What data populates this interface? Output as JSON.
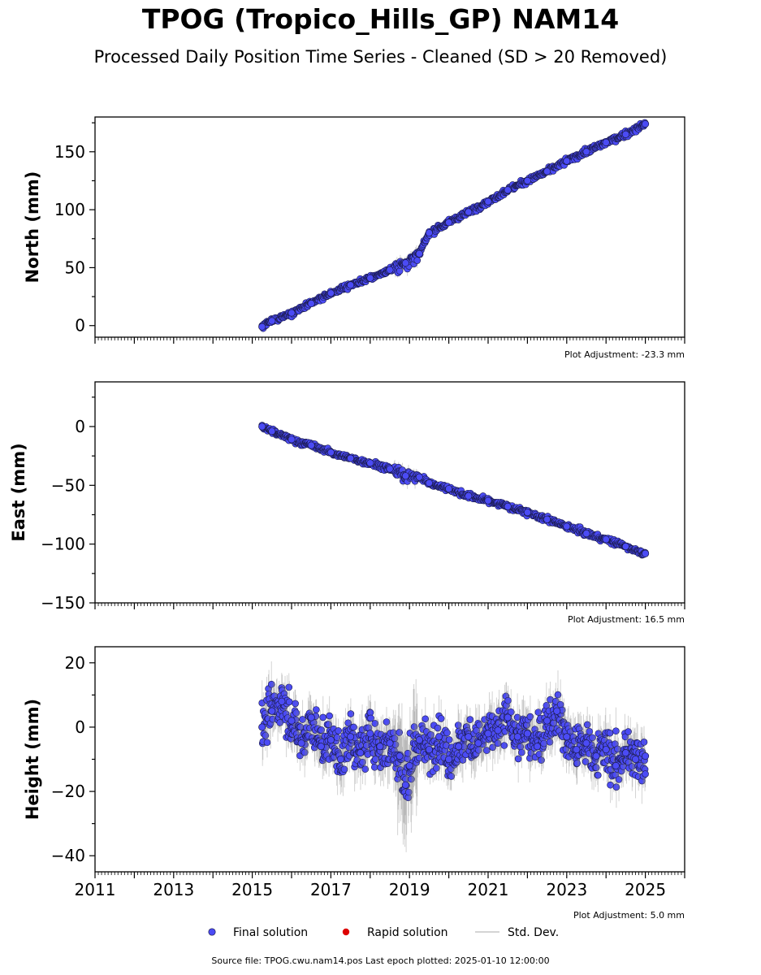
{
  "title": "TPOG (Tropico_Hills_GP) NAM14",
  "subtitle": "Processed Daily Position Time Series - Cleaned (SD > 20 Removed)",
  "footer": "Source file: TPOG.cwu.nam14.pos  Last epoch plotted: 2025-01-10 12:00:00",
  "legend": {
    "final": "Final solution",
    "rapid": "Rapid solution",
    "std": "Std. Dev."
  },
  "colors": {
    "final_fill": "#4b4bf5",
    "final_edge": "#1a1a4a",
    "rapid": "#dd0000",
    "std_dev": "#808080",
    "axis": "#000000"
  },
  "chart_data": [
    {
      "type": "scatter",
      "ylabel": "North (mm)",
      "adjustment": "Plot Adjustment: -23.3 mm",
      "xlim": [
        2011,
        2026
      ],
      "ylim": [
        -10,
        180
      ],
      "yticks": [
        0,
        50,
        100,
        150
      ],
      "grid": false,
      "series": [
        {
          "name": "Final solution",
          "x": [
            2015.25,
            2015.5,
            2016.0,
            2016.5,
            2017.0,
            2017.5,
            2018.0,
            2018.5,
            2018.9,
            2019.25,
            2019.5,
            2020.0,
            2020.5,
            2021.0,
            2021.5,
            2022.0,
            2022.5,
            2023.0,
            2023.5,
            2024.0,
            2024.5,
            2025.0
          ],
          "y": [
            -1,
            4,
            11,
            19,
            28,
            35,
            41,
            48,
            54,
            62,
            80,
            89,
            98,
            107,
            117,
            125,
            133,
            142,
            150,
            158,
            165,
            174
          ]
        }
      ]
    },
    {
      "type": "scatter",
      "ylabel": "East (mm)",
      "adjustment": "Plot Adjustment: 16.5 mm",
      "xlim": [
        2011,
        2026
      ],
      "ylim": [
        -150,
        38
      ],
      "yticks": [
        -150,
        -100,
        -50,
        0
      ],
      "grid": false,
      "series": [
        {
          "name": "Final solution",
          "x": [
            2015.25,
            2015.5,
            2016.0,
            2016.5,
            2017.0,
            2017.5,
            2018.0,
            2018.5,
            2018.9,
            2019.25,
            2019.5,
            2020.0,
            2020.5,
            2021.0,
            2021.5,
            2022.0,
            2022.5,
            2023.0,
            2023.5,
            2024.0,
            2024.5,
            2025.0
          ],
          "y": [
            0,
            -4,
            -11,
            -16,
            -22,
            -27,
            -31,
            -36,
            -42,
            -43,
            -48,
            -53,
            -59,
            -63,
            -68,
            -73,
            -79,
            -85,
            -91,
            -96,
            -102,
            -108
          ]
        }
      ]
    },
    {
      "type": "scatter",
      "ylabel": "Height (mm)",
      "adjustment": "Plot Adjustment: 5.0 mm",
      "xlim": [
        2011,
        2026
      ],
      "ylim": [
        -45,
        25
      ],
      "yticks": [
        -40,
        -20,
        0,
        20
      ],
      "xticks": [
        2011,
        2013,
        2015,
        2017,
        2019,
        2021,
        2023,
        2025
      ],
      "grid": false,
      "series": [
        {
          "name": "Final solution",
          "x": [
            2015.25,
            2015.5,
            2015.75,
            2016.0,
            2016.25,
            2016.5,
            2016.75,
            2017.0,
            2017.25,
            2017.5,
            2017.75,
            2018.0,
            2018.25,
            2018.5,
            2018.75,
            2018.9,
            2019.0,
            2019.25,
            2019.5,
            2019.75,
            2020.0,
            2020.25,
            2020.5,
            2020.75,
            2021.0,
            2021.25,
            2021.5,
            2021.75,
            2022.0,
            2022.25,
            2022.5,
            2022.75,
            2023.0,
            2023.25,
            2023.5,
            2023.75,
            2024.0,
            2024.25,
            2024.5,
            2024.75,
            2025.0
          ],
          "y": [
            0,
            5,
            8,
            2,
            -5,
            3,
            -6,
            -4,
            -10,
            -3,
            -8,
            -2,
            -6,
            -5,
            -9,
            -18,
            -12,
            -4,
            -7,
            -3,
            -10,
            -6,
            -3,
            -5,
            -2,
            -1,
            3,
            -3,
            -2,
            -6,
            2,
            5,
            -3,
            -7,
            -5,
            -9,
            -7,
            -12,
            -8,
            -10,
            -9
          ]
        }
      ]
    }
  ]
}
